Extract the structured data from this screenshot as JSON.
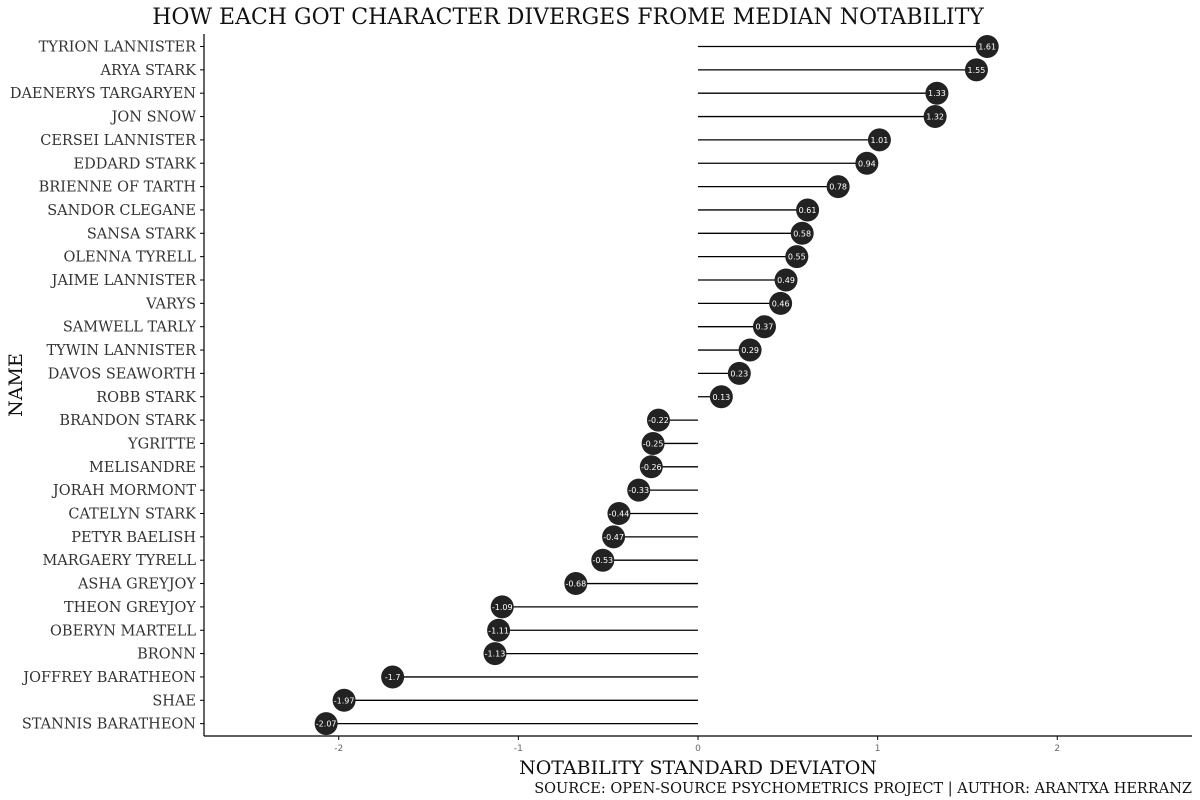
{
  "chart_data": {
    "type": "lollipop",
    "title": "HOW EACH GOT CHARACTER DIVERGES FROME MEDIAN NOTABILITY",
    "xlabel": "NOTABILITY STANDARD DEVIATON",
    "ylabel": "NAME",
    "caption": "SOURCE: OPEN-SOURCE PSYCHOMETRICS PROJECT | AUTHOR: ARANTXA HERRANZ",
    "xlim": [
      -2.75,
      2.75
    ],
    "xticks": [
      -2,
      -1,
      0,
      1,
      2
    ],
    "xtick_labels": [
      "-2",
      "-1",
      "0",
      "1",
      "2"
    ],
    "grid": false,
    "categories": [
      "TYRION LANNISTER",
      "ARYA STARK",
      "DAENERYS TARGARYEN",
      "JON SNOW",
      "CERSEI LANNISTER",
      "EDDARD STARK",
      "BRIENNE OF TARTH",
      "SANDOR CLEGANE",
      "SANSA STARK",
      "OLENNA TYRELL",
      "JAIME LANNISTER",
      "VARYS",
      "SAMWELL TARLY",
      "TYWIN LANNISTER",
      "DAVOS SEAWORTH",
      "ROBB STARK",
      "BRANDON STARK",
      "YGRITTE",
      "MELISANDRE",
      "JORAH MORMONT",
      "CATELYN STARK",
      "PETYR BAELISH",
      "MARGAERY TYRELL",
      "ASHA GREYJOY",
      "THEON GREYJOY",
      "OBERYN MARTELL",
      "BRONN",
      "JOFFREY BARATHEON",
      "SHAE",
      "STANNIS BARATHEON"
    ],
    "values": [
      1.61,
      1.55,
      1.33,
      1.32,
      1.01,
      0.94,
      0.78,
      0.61,
      0.58,
      0.55,
      0.49,
      0.46,
      0.37,
      0.29,
      0.23,
      0.13,
      -0.22,
      -0.25,
      -0.26,
      -0.33,
      -0.44,
      -0.47,
      -0.53,
      -0.68,
      -1.09,
      -1.11,
      -1.13,
      -1.7,
      -1.97,
      -2.07
    ],
    "value_labels": [
      "1.61",
      "1.55",
      "1.33",
      "1.32",
      "1.01",
      "0.94",
      "0.78",
      "0.61",
      "0.58",
      "0.55",
      "0.49",
      "0.46",
      "0.37",
      "0.29",
      "0.23",
      "0.13",
      "-0.22",
      "-0.25",
      "-0.26",
      "-0.33",
      "-0.44",
      "-0.47",
      "-0.53",
      "-0.68",
      "-1.09",
      "-1.11",
      "-1.13",
      "-1.7",
      "-1.97",
      "-2.07"
    ],
    "colors": {
      "stem": "#000000",
      "dot": "#222222",
      "label": "#ffffff",
      "axis": "#000000"
    }
  }
}
